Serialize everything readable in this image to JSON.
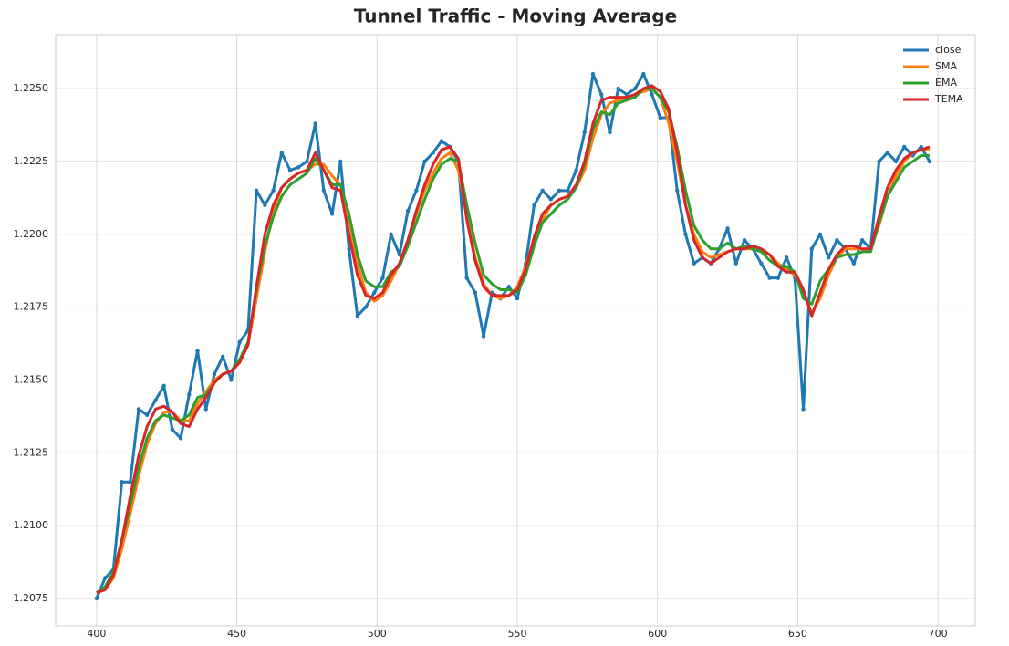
{
  "chart_data": {
    "type": "line",
    "title": "Tunnel Traffic - Moving Average",
    "x": [
      400,
      403,
      406,
      409,
      412,
      415,
      418,
      421,
      424,
      427,
      430,
      433,
      436,
      439,
      442,
      445,
      448,
      451,
      454,
      457,
      460,
      463,
      466,
      469,
      472,
      475,
      478,
      481,
      484,
      487,
      490,
      493,
      496,
      499,
      502,
      505,
      508,
      511,
      514,
      517,
      520,
      523,
      526,
      529,
      532,
      535,
      538,
      541,
      544,
      547,
      550,
      553,
      556,
      559,
      562,
      565,
      568,
      571,
      574,
      577,
      580,
      583,
      586,
      589,
      592,
      595,
      598,
      601,
      604,
      607,
      610,
      613,
      616,
      619,
      622,
      625,
      628,
      631,
      634,
      637,
      640,
      643,
      646,
      649,
      652,
      655,
      658,
      661,
      664,
      667,
      670,
      673,
      676,
      679,
      682,
      685,
      688,
      691,
      694,
      697
    ],
    "series": [
      {
        "name": "close",
        "color": "#1f77b4",
        "markers": true,
        "values": [
          1.2075,
          1.2082,
          1.2085,
          1.2115,
          1.2115,
          1.214,
          1.2138,
          1.2143,
          1.2148,
          1.2133,
          1.213,
          1.2145,
          1.216,
          1.214,
          1.2152,
          1.2158,
          1.215,
          1.2163,
          1.2167,
          1.2215,
          1.221,
          1.2215,
          1.2228,
          1.2222,
          1.2223,
          1.2225,
          1.2238,
          1.2215,
          1.2207,
          1.2225,
          1.2195,
          1.2172,
          1.2175,
          1.218,
          1.2185,
          1.22,
          1.2193,
          1.2208,
          1.2215,
          1.2225,
          1.2228,
          1.2232,
          1.223,
          1.2225,
          1.2185,
          1.218,
          1.2165,
          1.218,
          1.2178,
          1.2182,
          1.2178,
          1.219,
          1.221,
          1.2215,
          1.2212,
          1.2215,
          1.2215,
          1.2222,
          1.2235,
          1.2255,
          1.2248,
          1.2235,
          1.225,
          1.2248,
          1.225,
          1.2255,
          1.2248,
          1.224,
          1.224,
          1.2215,
          1.22,
          1.219,
          1.2192,
          1.219,
          1.2195,
          1.2202,
          1.219,
          1.2198,
          1.2195,
          1.219,
          1.2185,
          1.2185,
          1.2192,
          1.2185,
          1.214,
          1.2195,
          1.22,
          1.2192,
          1.2198,
          1.2195,
          1.219,
          1.2198,
          1.2195,
          1.2225,
          1.2228,
          1.2225,
          1.223,
          1.2227,
          1.223,
          1.2225
        ]
      },
      {
        "name": "SMA",
        "color": "#ff7f0e",
        "values": [
          1.2077,
          1.2078,
          1.2082,
          1.2092,
          1.2104,
          1.2117,
          1.2128,
          1.2135,
          1.2139,
          1.2139,
          1.2136,
          1.2136,
          1.2142,
          1.2146,
          1.215,
          1.2152,
          1.2153,
          1.2156,
          1.2162,
          1.2178,
          1.2194,
          1.2208,
          1.2216,
          1.2219,
          1.2221,
          1.2222,
          1.2224,
          1.2224,
          1.222,
          1.2217,
          1.2205,
          1.219,
          1.218,
          1.2177,
          1.2179,
          1.2184,
          1.219,
          1.2198,
          1.2207,
          1.2215,
          1.2221,
          1.2226,
          1.2228,
          1.2222,
          1.2207,
          1.2192,
          1.2183,
          1.2179,
          1.2178,
          1.2179,
          1.2182,
          1.2189,
          1.2198,
          1.2205,
          1.221,
          1.2212,
          1.2213,
          1.2216,
          1.2222,
          1.2233,
          1.2241,
          1.2245,
          1.2246,
          1.2247,
          1.2248,
          1.2249,
          1.225,
          1.2247,
          1.2238,
          1.2225,
          1.221,
          1.22,
          1.2194,
          1.2192,
          1.2193,
          1.2194,
          1.2195,
          1.2195,
          1.2195,
          1.2194,
          1.2193,
          1.219,
          1.2188,
          1.2186,
          1.218,
          1.2173,
          1.2178,
          1.2186,
          1.2192,
          1.2195,
          1.2195,
          1.2195,
          1.2195,
          1.2203,
          1.2213,
          1.222,
          1.2225,
          1.2228,
          1.2229,
          1.2229
        ]
      },
      {
        "name": "EMA",
        "color": "#2ca02c",
        "values": [
          1.2077,
          1.2079,
          1.2084,
          1.2095,
          1.2107,
          1.212,
          1.213,
          1.2136,
          1.2138,
          1.2137,
          1.2136,
          1.2138,
          1.2144,
          1.2145,
          1.2149,
          1.2152,
          1.2153,
          1.2157,
          1.2163,
          1.2181,
          1.2196,
          1.2206,
          1.2213,
          1.2217,
          1.2219,
          1.2221,
          1.2226,
          1.2222,
          1.2217,
          1.2217,
          1.2207,
          1.2193,
          1.2184,
          1.2182,
          1.2182,
          1.2187,
          1.2189,
          1.2196,
          1.2204,
          1.2212,
          1.2219,
          1.2224,
          1.2226,
          1.2225,
          1.221,
          1.2197,
          1.2186,
          1.2183,
          1.2181,
          1.2181,
          1.218,
          1.2186,
          1.2196,
          1.2204,
          1.2207,
          1.221,
          1.2212,
          1.2216,
          1.2224,
          1.2236,
          1.2242,
          1.2241,
          1.2245,
          1.2246,
          1.2247,
          1.225,
          1.225,
          1.2247,
          1.2242,
          1.223,
          1.2215,
          1.2203,
          1.2198,
          1.2195,
          1.2195,
          1.2197,
          1.2195,
          1.2196,
          1.2195,
          1.2194,
          1.2191,
          1.2189,
          1.2189,
          1.2187,
          1.2178,
          1.2176,
          1.2184,
          1.2188,
          1.2192,
          1.2193,
          1.2193,
          1.2194,
          1.2194,
          1.2204,
          1.2213,
          1.2218,
          1.2223,
          1.2225,
          1.2227,
          1.2227
        ]
      },
      {
        "name": "TEMA",
        "color": "#d62728",
        "values": [
          1.2077,
          1.2078,
          1.2083,
          1.2095,
          1.211,
          1.2124,
          1.2134,
          1.214,
          1.2141,
          1.2139,
          1.2135,
          1.2134,
          1.214,
          1.2144,
          1.2149,
          1.2152,
          1.2153,
          1.2156,
          1.2162,
          1.2182,
          1.22,
          1.221,
          1.2216,
          1.2219,
          1.2221,
          1.2222,
          1.2228,
          1.2222,
          1.2216,
          1.2215,
          1.22,
          1.2186,
          1.2179,
          1.2178,
          1.218,
          1.2186,
          1.219,
          1.2198,
          1.2208,
          1.2217,
          1.2224,
          1.2229,
          1.223,
          1.2226,
          1.2205,
          1.2191,
          1.2182,
          1.2179,
          1.2179,
          1.2179,
          1.2181,
          1.2188,
          1.2199,
          1.2207,
          1.221,
          1.2212,
          1.2213,
          1.2217,
          1.2225,
          1.2238,
          1.2246,
          1.2247,
          1.2247,
          1.2247,
          1.2248,
          1.225,
          1.2251,
          1.2249,
          1.2243,
          1.2228,
          1.221,
          1.2198,
          1.2192,
          1.219,
          1.2192,
          1.2194,
          1.2195,
          1.2195,
          1.2196,
          1.2195,
          1.2193,
          1.2189,
          1.2187,
          1.2187,
          1.2181,
          1.2172,
          1.218,
          1.2188,
          1.2193,
          1.2196,
          1.2196,
          1.2195,
          1.2195,
          1.2206,
          1.2216,
          1.2222,
          1.2226,
          1.2228,
          1.2229,
          1.223
        ]
      }
    ],
    "xlim": [
      385.4,
      713.3
    ],
    "xticks": [
      400,
      450,
      500,
      550,
      600,
      650,
      700
    ],
    "ylim": [
      1.20656,
      1.22685
    ],
    "yticks": [
      1.2075,
      {
        "value": 1.21,
        "label": "1.2100"
      },
      1.2125,
      {
        "value": 1.215,
        "label": "1.2150"
      },
      1.2175,
      {
        "value": 1.22,
        "label": "1.2200"
      },
      1.2225,
      {
        "value": 1.225,
        "label": "1.2250"
      }
    ],
    "grid": true,
    "legend": "upper right"
  }
}
